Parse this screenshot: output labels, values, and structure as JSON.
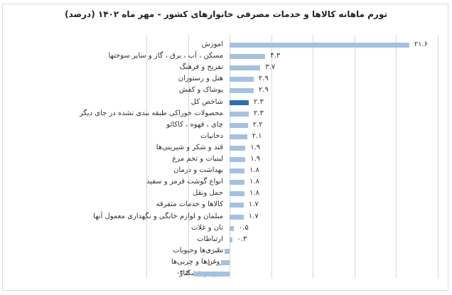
{
  "chart_data": {
    "type": "bar",
    "orientation": "horizontal",
    "title": "تورم ماهانه کالاها و خدمات مصرفی خانوارهای کشور - مهر ماه ۱۴۰۲ (درصد)",
    "xlabel": "",
    "ylabel": "",
    "xlim": [
      -10,
      25
    ],
    "grid": true,
    "legend": null,
    "colors": {
      "default": "#a4c2e0",
      "highlight": "#2e6db0"
    },
    "categories": [
      "اموزش",
      "مسکن ، آب ، برق ، گاز و سایر سوختها",
      "تفریح و فرهنگ",
      "هتل و رستوران",
      "پوشاک و کفش",
      "شاخص کل",
      "محصولات خوراکی طبقه بندی نشده در جای دیگر",
      "چای ، قهوه ، کاکائو",
      "دخانیات",
      "قند و شکر و شیرینی‌ها",
      "لبنیات و تخم مرغ",
      "بهداشت و درمان",
      "انواع گوشت قرمز و سفید",
      "حمل ونقل",
      "کالاها و خدمات متفرقه",
      "مبلمان و لوازم خانگی و نگهداری معمول آنها",
      "نان و غلات",
      "ارتباطات",
      "سبزی‌ها وحبوبات",
      "روغن‌ها و چربی‌ها",
      "میوه و خشکبار"
    ],
    "values": [
      21.6,
      4.3,
      3.7,
      2.9,
      2.9,
      2.3,
      2.3,
      2.2,
      2.1,
      1.9,
      1.9,
      1.8,
      1.8,
      1.8,
      1.7,
      1.7,
      0.5,
      0.3,
      -0.6,
      -1.0,
      -4.3
    ],
    "value_labels": [
      "۲۱.۶",
      "۴.۳",
      "۳.۷",
      "۲.۹",
      "۲.۹",
      "۲.۳",
      "۲.۳",
      "۲.۲",
      "۲.۱",
      "۱.۹",
      "۱.۹",
      "۱.۸",
      "۱.۸",
      "۱.۸",
      "۱.۷",
      "۱.۷",
      "۰.۵",
      "۰.۳",
      "-۰.۶",
      "-۱.۰",
      "-۴.۳"
    ],
    "highlight_index": 5
  }
}
